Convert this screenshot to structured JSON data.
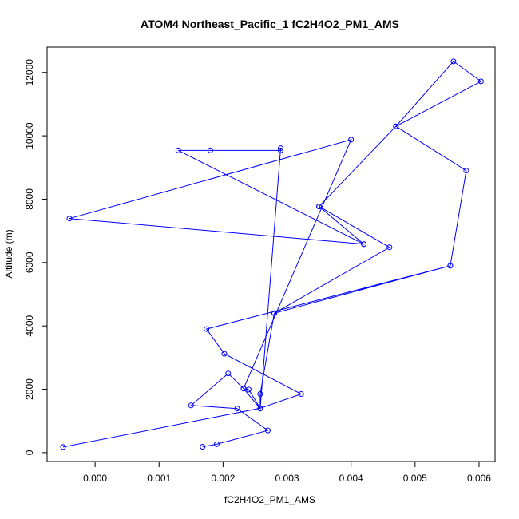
{
  "chart_data": {
    "type": "line",
    "title": "ATOM4 Northeast_Pacific_1 fC2H4O2_PM1_AMS",
    "xlabel": "fC2H4O2_PM1_AMS",
    "ylabel": "Altitude (m)",
    "xlim": [
      -0.00075,
      0.00625
    ],
    "ylim": [
      -280,
      12800
    ],
    "xticks": [
      0,
      0.001,
      0.002,
      0.003,
      0.004,
      0.005,
      0.006
    ],
    "xtick_labels": [
      "0.000",
      "0.001",
      "0.002",
      "0.003",
      "0.004",
      "0.005",
      "0.006"
    ],
    "yticks": [
      0,
      2000,
      4000,
      6000,
      8000,
      10000,
      12000
    ],
    "ytick_labels": [
      "0",
      "2000",
      "4000",
      "6000",
      "8000",
      "10000",
      "12000"
    ],
    "grid": false,
    "color": "#0000ff",
    "x": [
      0.00168,
      0.0019,
      0.0027,
      0.00222,
      0.0015,
      0.00208,
      0.00232,
      0.0024,
      0.00258,
      0.00322,
      0.00202,
      0.00174,
      0.00555,
      0.0028,
      0.0046,
      0.0035,
      0.0042,
      -0.0004,
      0.004,
      0.00232,
      0.00258,
      0.0029,
      0.0029,
      0.0018,
      0.0013,
      0.0042,
      0.0035,
      0.0047,
      0.0056,
      0.00603,
      0.0047,
      0.0058,
      0.00555,
      0.0028,
      0.00258,
      0.00258,
      -0.0005
    ],
    "y": [
      185,
      265,
      700,
      1390,
      1490,
      2500,
      2020,
      1990,
      1400,
      1850,
      3120,
      3900,
      5900,
      4400,
      6480,
      7770,
      6580,
      7390,
      9880,
      2020,
      1390,
      9610,
      9540,
      9540,
      9540,
      6580,
      7770,
      10300,
      12350,
      11720,
      10300,
      8900,
      5900,
      4400,
      1850,
      1400,
      175
    ]
  }
}
